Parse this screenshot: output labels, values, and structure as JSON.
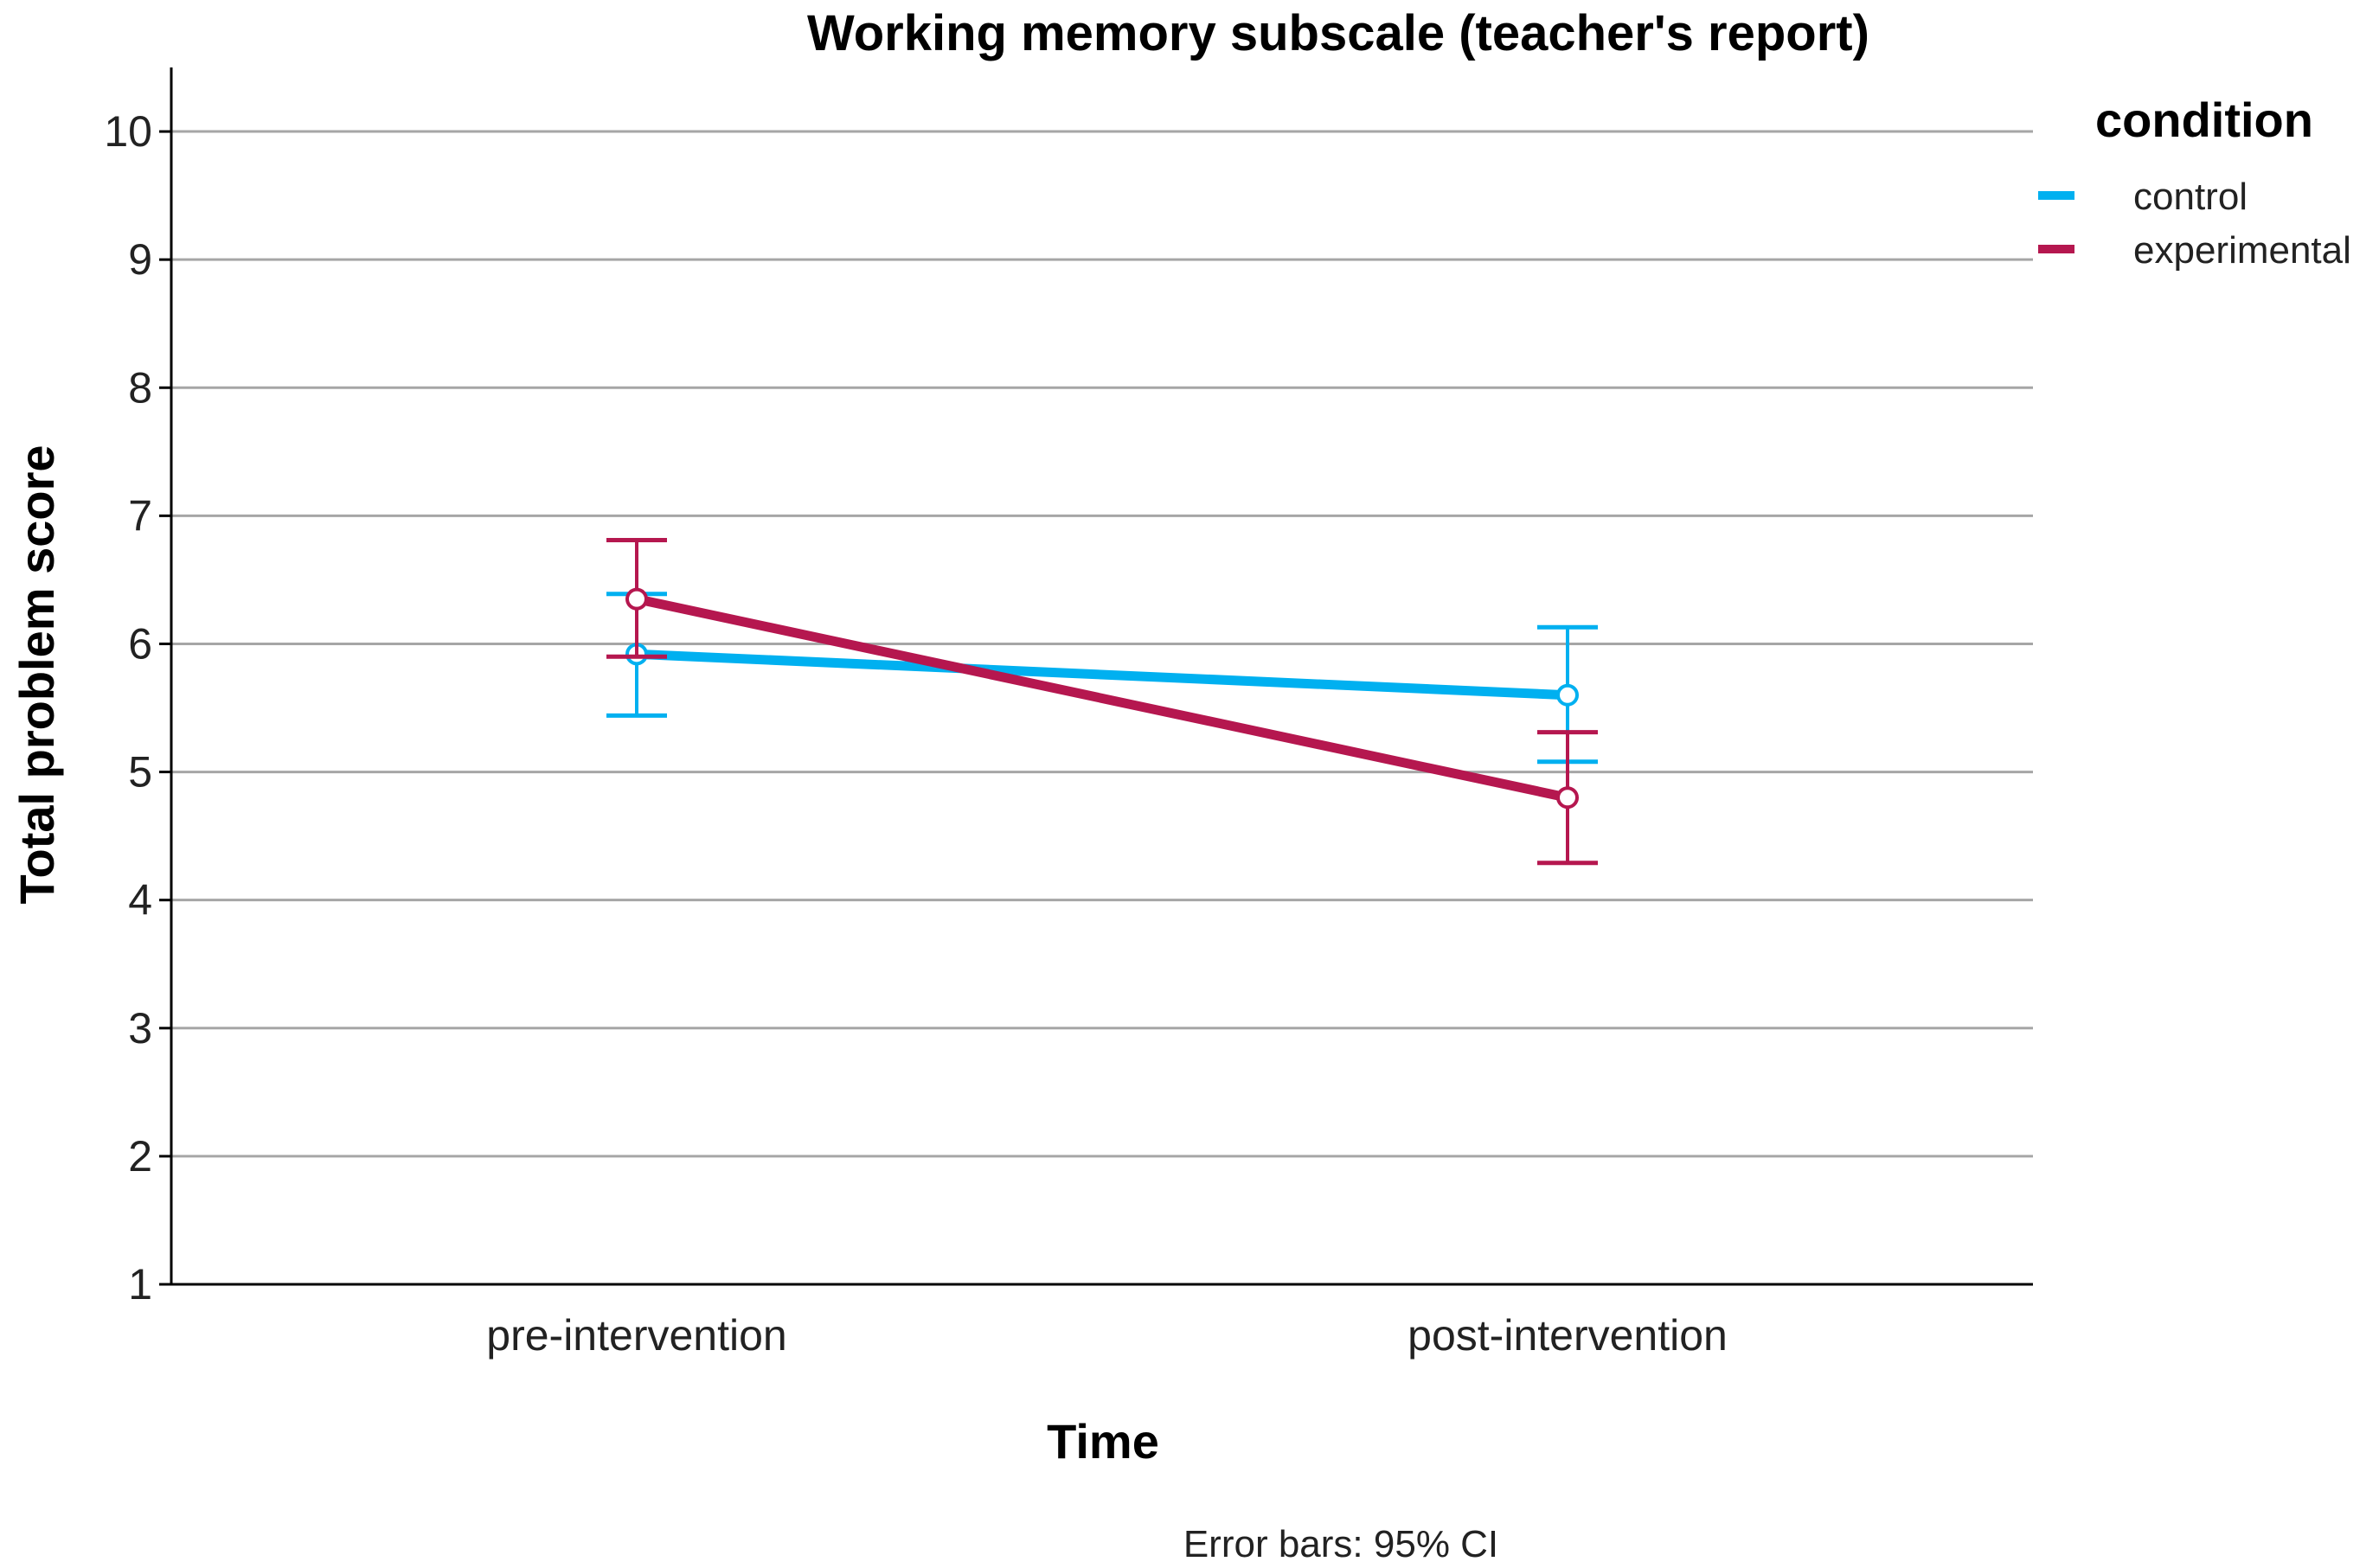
{
  "chart_data": {
    "type": "line",
    "title": "Working memory subscale (teacher's report)",
    "xlabel": "Time",
    "ylabel": "Total problem score",
    "categories": [
      "pre-intervention",
      "post-intervention"
    ],
    "ylim": [
      1,
      10.5
    ],
    "yticks": [
      "1",
      "2",
      "3",
      "4",
      "5",
      "6",
      "7",
      "8",
      "9",
      "10"
    ],
    "grid": true,
    "legend": {
      "title": "condition",
      "position": "right"
    },
    "series": [
      {
        "name": "control",
        "color": "#00B0F0",
        "values": [
          5.92,
          5.6
        ],
        "ci_low": [
          5.44,
          5.08
        ],
        "ci_high": [
          6.39,
          6.13
        ]
      },
      {
        "name": "experimental",
        "color": "#B5174F",
        "values": [
          6.35,
          4.8
        ],
        "ci_low": [
          5.9,
          4.29
        ],
        "ci_high": [
          6.81,
          5.31
        ]
      }
    ],
    "footnote": "Error bars: 95% CI"
  }
}
